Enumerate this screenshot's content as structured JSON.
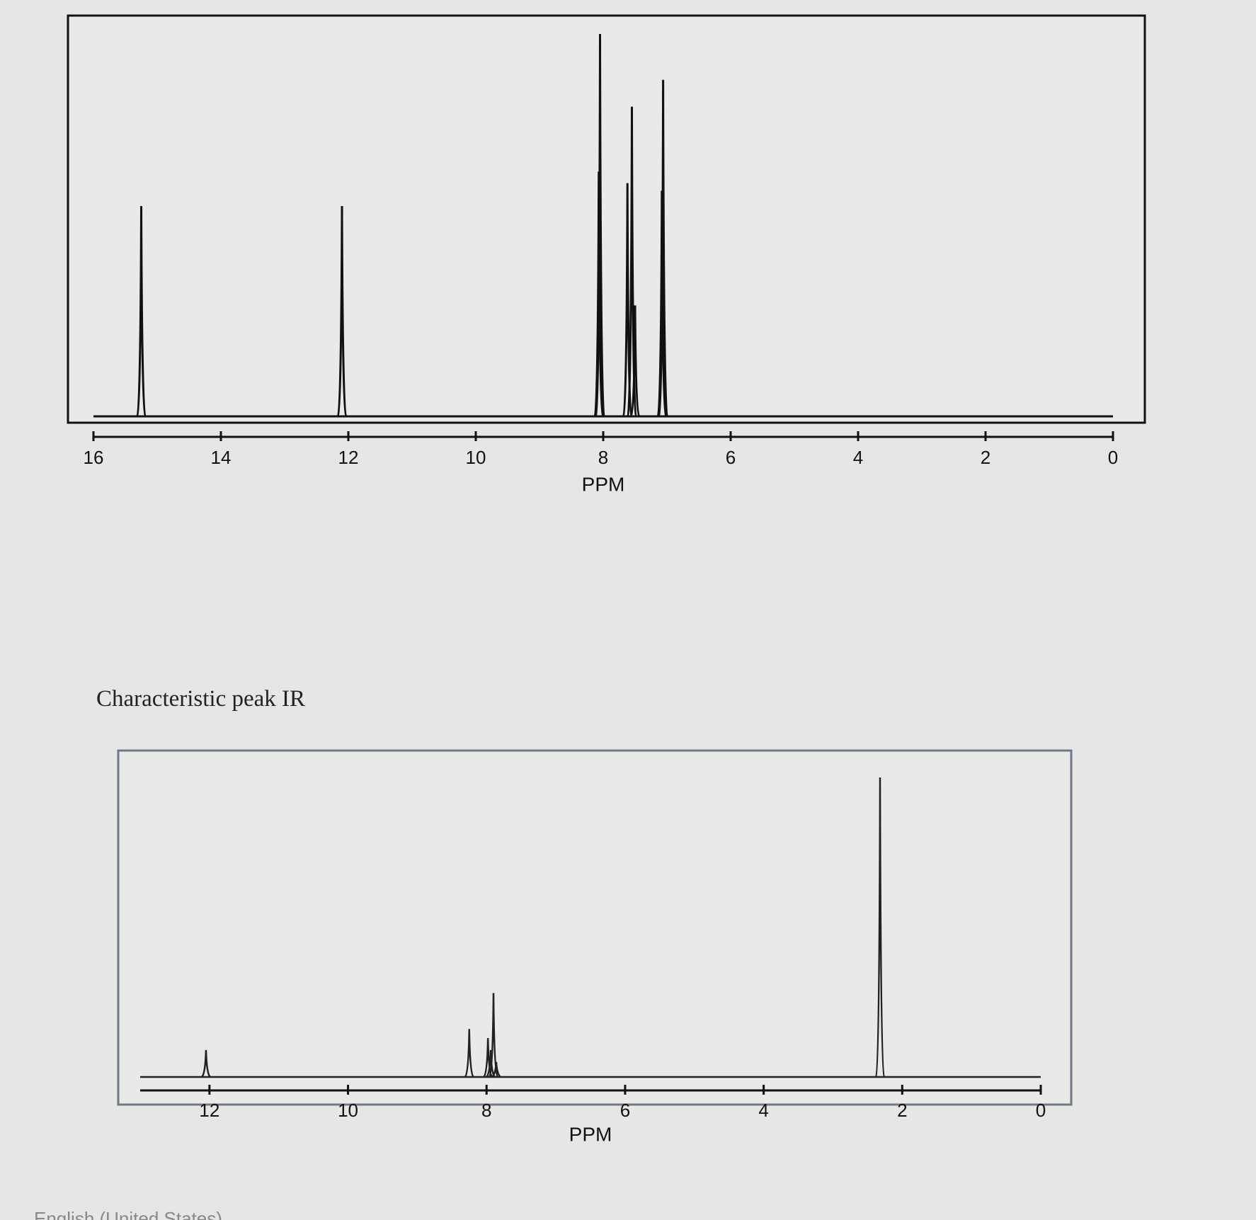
{
  "chart_data": [
    {
      "type": "stem",
      "x_label": "PPM",
      "x": [
        15.25,
        12.1,
        8.07,
        8.05,
        7.62,
        7.55,
        7.5,
        7.08,
        7.06
      ],
      "values": [
        55,
        55,
        64,
        100,
        61,
        81,
        29,
        59,
        88
      ],
      "xlim": [
        16,
        0
      ],
      "xticks": [
        16,
        14,
        12,
        10,
        8,
        6,
        4,
        2,
        0
      ],
      "ylim": [
        0,
        100
      ],
      "color": "#111111"
    },
    {
      "type": "stem",
      "x_label": "PPM",
      "x": [
        12.05,
        8.25,
        7.98,
        7.94,
        7.9,
        7.86,
        2.32
      ],
      "values": [
        9,
        16,
        13,
        9,
        28,
        5,
        100
      ],
      "xlim": [
        13,
        0
      ],
      "xticks": [
        12,
        10,
        8,
        6,
        4,
        2,
        0
      ],
      "ylim": [
        0,
        100
      ],
      "color": "#222222"
    }
  ],
  "caption": "Characteristic peak IR",
  "footer": "English (United States)"
}
